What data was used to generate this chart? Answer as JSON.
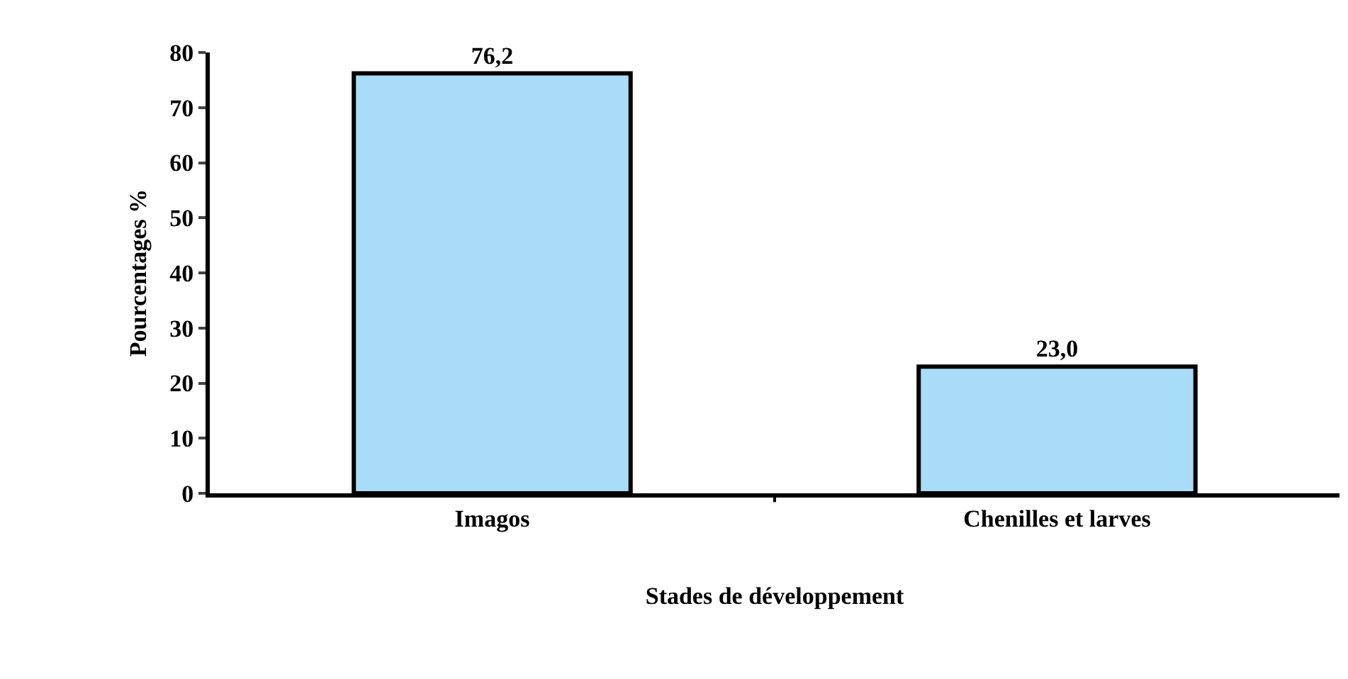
{
  "chart_data": {
    "type": "bar",
    "xlabel": "Stades de développement",
    "ylabel": "Pourcentages %",
    "categories": [
      "Imagos",
      "Chenilles et larves"
    ],
    "values": [
      76.2,
      23.0
    ],
    "value_labels": [
      "76,2",
      "23,0"
    ],
    "color": "#a9dcf7",
    "ylim": [
      0,
      80
    ],
    "yticks": [
      0,
      10,
      20,
      30,
      40,
      50,
      60,
      70,
      80
    ],
    "grid": false,
    "legend": false
  }
}
